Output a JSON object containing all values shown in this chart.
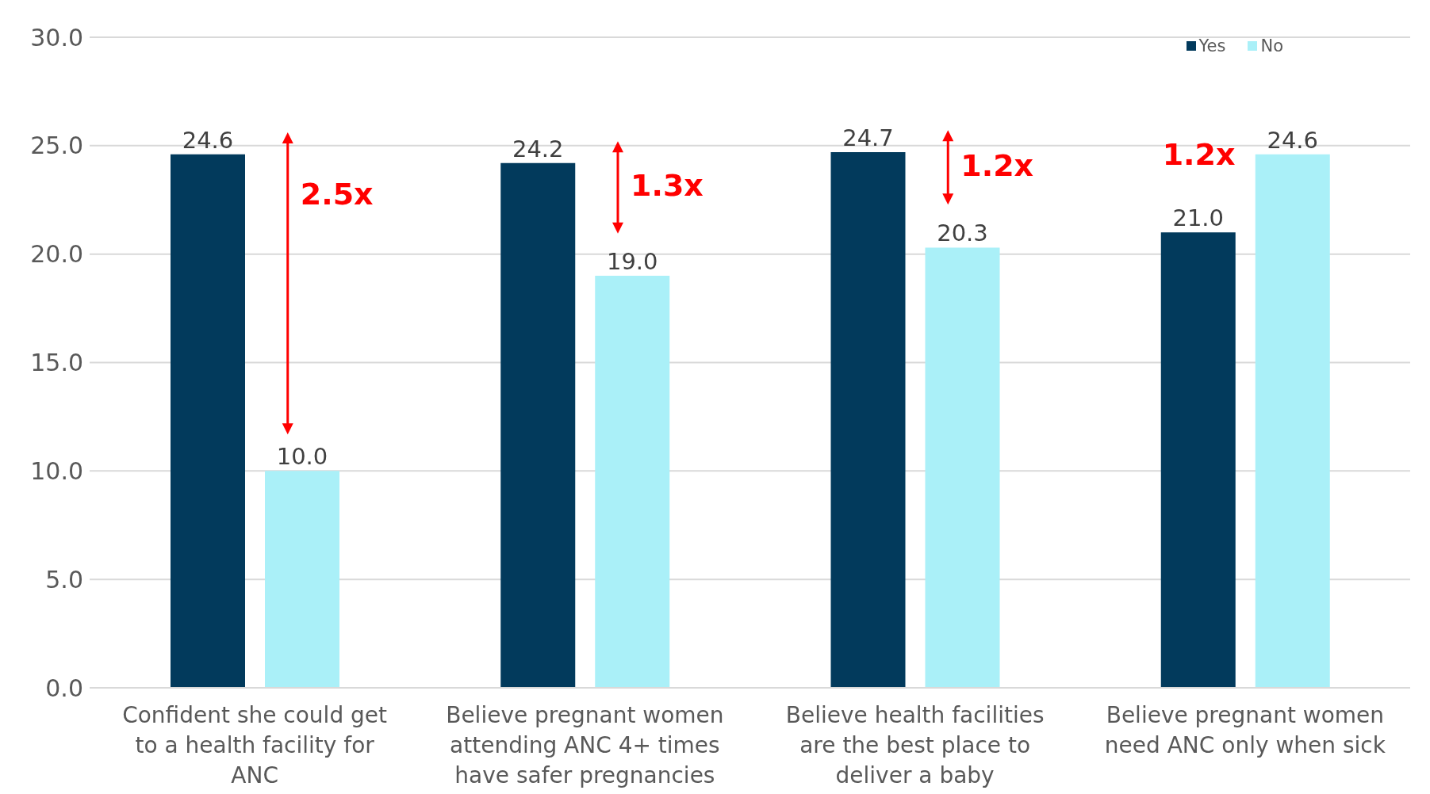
{
  "chart_data": {
    "type": "bar",
    "categories": [
      "Confident she could get to a health facility for ANC",
      "Believe pregnant women attending ANC 4+ times have safer pregnancies",
      "Believe health facilities are the best place to deliver a baby",
      "Believe pregnant women need ANC only when sick"
    ],
    "series": [
      {
        "name": "Yes",
        "color": "#023a5c",
        "values": [
          24.6,
          24.2,
          24.7,
          21.0
        ],
        "value_labels": [
          "24.6",
          "24.2",
          "24.7",
          "21.0"
        ]
      },
      {
        "name": "No",
        "color": "#aaf0f8",
        "values": [
          10.0,
          19.0,
          20.3,
          24.6
        ],
        "value_labels": [
          "10.0",
          "19.0",
          "20.3",
          "24.6"
        ]
      }
    ],
    "ylim": [
      0,
      30
    ],
    "yticks": [
      {
        "value": 0,
        "label": "0.0"
      },
      {
        "value": 5,
        "label": "5.0"
      },
      {
        "value": 10,
        "label": "10.0"
      },
      {
        "value": 15,
        "label": "15.0"
      },
      {
        "value": 20,
        "label": "20.0"
      },
      {
        "value": 25,
        "label": "25.0"
      },
      {
        "value": 30,
        "label": "30.0"
      }
    ],
    "grid": "y",
    "legend": "top right",
    "annotations": [
      "2.5x",
      "1.3x",
      "1.2x",
      "1.2x"
    ]
  }
}
